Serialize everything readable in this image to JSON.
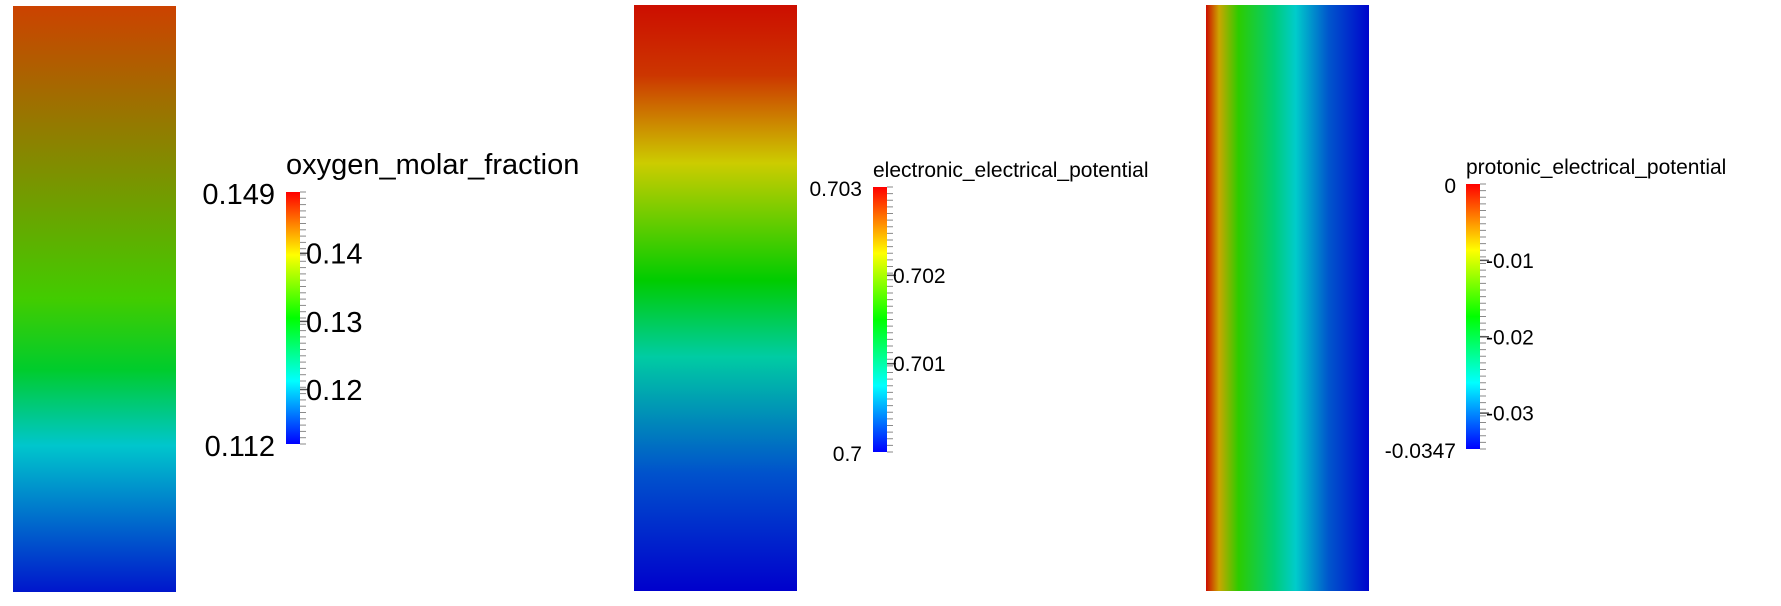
{
  "chart_data": [
    {
      "type": "heatmap",
      "title": "oxygen_molar_fraction",
      "colormap": [
        "#0000ff",
        "#00ffff",
        "#00ff00",
        "#ffff00",
        "#ff0000"
      ],
      "range": [
        0.112,
        0.149
      ],
      "range_labels": [
        "0.149",
        "0.112"
      ],
      "ticks": [
        0.14,
        0.13,
        0.12
      ],
      "tick_labels": [
        "0.14",
        "0.13",
        "0.12"
      ],
      "field": {
        "gradient_direction": "vertical",
        "stops": [
          {
            "position": 0.0,
            "value": 0.146
          },
          {
            "position": 0.5,
            "value": 0.1335
          },
          {
            "position": 0.62,
            "value": 0.1285
          },
          {
            "position": 0.75,
            "value": 0.121
          },
          {
            "position": 1.0,
            "value": 0.113
          }
        ]
      }
    },
    {
      "type": "heatmap",
      "title": "electronic_electrical_potential",
      "colormap": [
        "#0000ff",
        "#00ffff",
        "#00ff00",
        "#ffff00",
        "#ff0000"
      ],
      "range": [
        0.7,
        0.703
      ],
      "range_labels": [
        "0.703",
        "0.7"
      ],
      "ticks": [
        0.702,
        0.701
      ],
      "tick_labels": [
        "0.702",
        "0.701"
      ],
      "field": {
        "gradient_direction": "vertical",
        "stops": [
          {
            "position": 0.0,
            "value": 0.70295
          },
          {
            "position": 0.12,
            "value": 0.7028
          },
          {
            "position": 0.27,
            "value": 0.70225
          },
          {
            "position": 0.39,
            "value": 0.7018
          },
          {
            "position": 0.47,
            "value": 0.7015
          },
          {
            "position": 0.6,
            "value": 0.7009
          },
          {
            "position": 0.8,
            "value": 0.7003
          },
          {
            "position": 1.0,
            "value": 0.7
          }
        ]
      }
    },
    {
      "type": "heatmap",
      "title": "protonic_electrical_potential",
      "colormap": [
        "#0000ff",
        "#00ffff",
        "#00ff00",
        "#ffff00",
        "#ff0000"
      ],
      "range": [
        -0.0347,
        0
      ],
      "range_labels": [
        "0",
        "-0.0347"
      ],
      "ticks": [
        -0.01,
        -0.02,
        -0.03
      ],
      "tick_labels": [
        "-0.01",
        "-0.02",
        "-0.03"
      ],
      "field": {
        "gradient_direction": "horizontal",
        "stops": [
          {
            "position": 0.0,
            "value": -0.0005
          },
          {
            "position": 0.08,
            "value": -0.007
          },
          {
            "position": 0.2,
            "value": -0.0155
          },
          {
            "position": 0.42,
            "value": -0.0225
          },
          {
            "position": 0.55,
            "value": -0.026
          },
          {
            "position": 0.75,
            "value": -0.031
          },
          {
            "position": 1.0,
            "value": -0.0345
          }
        ]
      }
    }
  ]
}
